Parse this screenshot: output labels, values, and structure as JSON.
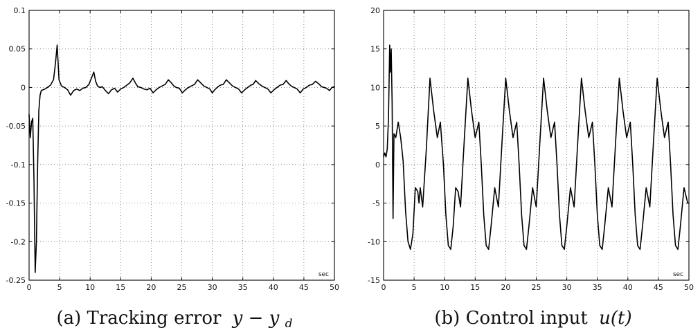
{
  "chart_data": [
    {
      "type": "line",
      "caption_label": "(a) Tracking error",
      "caption_math": "y − y",
      "caption_sub": "d",
      "unit_label": "sec",
      "xlim": [
        0,
        50
      ],
      "ylim": [
        -0.25,
        0.1
      ],
      "xticks": [
        0,
        5,
        10,
        15,
        20,
        25,
        30,
        35,
        40,
        45,
        50
      ],
      "yticks": [
        -0.25,
        -0.2,
        -0.15,
        -0.1,
        -0.05,
        0,
        0.05,
        0.1
      ],
      "xtick_labels": [
        "0",
        "5",
        "10",
        "15",
        "20",
        "25",
        "30",
        "35",
        "40",
        "45",
        "50"
      ],
      "ytick_labels": [
        "-0.25",
        "-0.2",
        "-0.15",
        "-0.1",
        "-0.05",
        "0",
        "0.05",
        "0.1"
      ],
      "grid": true,
      "line_color": "#000000",
      "series": [
        {
          "x": [
            0,
            0.2,
            0.4,
            0.6,
            0.8,
            1.0,
            1.2,
            1.4,
            1.6,
            1.8,
            2.0,
            2.3,
            2.6,
            3.0,
            3.5,
            4.0,
            4.3,
            4.6,
            4.9,
            5.3,
            5.8,
            6.3,
            6.8,
            7.3,
            7.8,
            8.3,
            8.8,
            9.3,
            9.8,
            10.2,
            10.6,
            10.9,
            11.2,
            11.6,
            12.0,
            12.5,
            13.0,
            13.5,
            14.0,
            14.5,
            15.0,
            15.5,
            16.0,
            16.5,
            17.0,
            17.4,
            17.8,
            18.3,
            18.8,
            19.3,
            19.8,
            20.3,
            20.8,
            21.3,
            21.8,
            22.3,
            22.8,
            23.3,
            23.7,
            24.1,
            24.6,
            25.1,
            25.6,
            26.1,
            26.6,
            27.1,
            27.6,
            28.1,
            28.6,
            29.1,
            29.6,
            30.0,
            30.4,
            30.8,
            31.3,
            31.8,
            32.3,
            32.8,
            33.3,
            33.8,
            34.3,
            34.8,
            35.3,
            35.8,
            36.3,
            36.7,
            37.1,
            37.6,
            38.1,
            38.6,
            39.1,
            39.6,
            40.1,
            40.6,
            41.1,
            41.6,
            42.1,
            42.5,
            42.9,
            43.4,
            43.9,
            44.4,
            44.9,
            45.4,
            45.9,
            46.4,
            46.9,
            47.4,
            47.9,
            48.3,
            48.7,
            49.2,
            49.6,
            50.0
          ],
          "y": [
            -0.035,
            -0.065,
            -0.045,
            -0.04,
            -0.12,
            -0.24,
            -0.2,
            -0.1,
            -0.03,
            -0.01,
            -0.004,
            -0.003,
            -0.002,
            0.0,
            0.003,
            0.01,
            0.03,
            0.055,
            0.01,
            0.002,
            0.0,
            -0.003,
            -0.01,
            -0.004,
            -0.002,
            -0.004,
            -0.001,
            0.0,
            0.004,
            0.012,
            0.02,
            0.008,
            0.002,
            0.0,
            0.001,
            -0.004,
            -0.008,
            -0.003,
            -0.001,
            -0.006,
            -0.002,
            0.0,
            0.003,
            0.006,
            0.012,
            0.006,
            0.001,
            0.0,
            -0.002,
            -0.003,
            -0.001,
            -0.007,
            -0.003,
            0.0,
            0.002,
            0.004,
            0.01,
            0.006,
            0.002,
            0.0,
            -0.001,
            -0.007,
            -0.003,
            0.0,
            0.002,
            0.004,
            0.01,
            0.006,
            0.002,
            0.0,
            -0.002,
            -0.007,
            -0.003,
            0.0,
            0.003,
            0.004,
            0.01,
            0.006,
            0.002,
            0.0,
            -0.002,
            -0.007,
            -0.003,
            0.0,
            0.003,
            0.004,
            0.009,
            0.005,
            0.002,
            0.0,
            -0.002,
            -0.007,
            -0.003,
            0.0,
            0.003,
            0.004,
            0.009,
            0.005,
            0.002,
            0.0,
            -0.002,
            -0.007,
            -0.002,
            0.0,
            0.003,
            0.004,
            0.008,
            0.005,
            0.001,
            0.0,
            -0.001,
            -0.004,
            0.0,
            0.001
          ]
        }
      ]
    },
    {
      "type": "line",
      "caption_label": "(b) Control input",
      "caption_math": "u(t)",
      "caption_sub": "",
      "unit_label": "sec",
      "xlim": [
        0,
        50
      ],
      "ylim": [
        -15,
        20
      ],
      "xticks": [
        0,
        5,
        10,
        15,
        20,
        25,
        30,
        35,
        40,
        45,
        50
      ],
      "yticks": [
        -15,
        -10,
        -5,
        0,
        5,
        10,
        15,
        20
      ],
      "xtick_labels": [
        "0",
        "5",
        "10",
        "15",
        "20",
        "25",
        "30",
        "35",
        "40",
        "45",
        "50"
      ],
      "ytick_labels": [
        "-15",
        "-10",
        "-5",
        "0",
        "5",
        "10",
        "15",
        "20"
      ],
      "grid": true,
      "line_color": "#000000",
      "series": [
        {
          "x": [
            0,
            0.2,
            0.4,
            0.6,
            0.8,
            1.0,
            1.1,
            1.25,
            1.4,
            1.55,
            1.7,
            2.0,
            2.4,
            2.8,
            3.2,
            3.6,
            4.0,
            4.4,
            4.8,
            5.2,
            5.6,
            5.8,
            6.0,
            6.4,
            7.0,
            7.6,
            8.2,
            8.8,
            9.3,
            9.8,
            10.2,
            10.6,
            11.0,
            11.4,
            11.8,
            12.2,
            12.6,
            13.2,
            13.8,
            14.4,
            15.0,
            15.6,
            16.0,
            16.4,
            16.8,
            17.2,
            17.6,
            18.2,
            18.8,
            19.4,
            20.0,
            20.6,
            21.2,
            21.8,
            22.2,
            22.6,
            23.0,
            23.4,
            23.8,
            24.4,
            25.0,
            25.6,
            26.2,
            26.8,
            27.4,
            28.0,
            28.4,
            28.8,
            29.2,
            29.6,
            30.0,
            30.6,
            31.2,
            31.8,
            32.4,
            33.0,
            33.6,
            34.2,
            34.6,
            35.0,
            35.4,
            35.8,
            36.2,
            36.8,
            37.4,
            38.0,
            38.6,
            39.2,
            39.8,
            40.4,
            40.8,
            41.2,
            41.6,
            42.0,
            42.4,
            43.0,
            43.6,
            44.2,
            44.8,
            45.4,
            46.0,
            46.6,
            47.0,
            47.4,
            47.8,
            48.2,
            48.6,
            49.2,
            49.8,
            50.0
          ],
          "y": [
            1,
            1.5,
            1.0,
            2.0,
            6.0,
            15.5,
            12.0,
            15.0,
            8.0,
            -7.0,
            4.0,
            3.5,
            5.5,
            3.5,
            0.5,
            -6.0,
            -10.0,
            -11.0,
            -9.0,
            -3.0,
            -3.5,
            -5.0,
            -3.0,
            -5.5,
            2.0,
            11.2,
            7.0,
            3.5,
            5.5,
            0.0,
            -6.5,
            -10.5,
            -11.0,
            -8.0,
            -3.0,
            -3.5,
            -5.5,
            3.0,
            11.2,
            7.0,
            3.5,
            5.5,
            0.0,
            -6.5,
            -10.5,
            -11.0,
            -8.0,
            -3.0,
            -5.5,
            3.0,
            11.2,
            7.0,
            3.5,
            5.5,
            0.0,
            -6.5,
            -10.5,
            -11.0,
            -8.0,
            -3.0,
            -5.5,
            3.0,
            11.2,
            7.0,
            3.5,
            5.5,
            0.0,
            -6.5,
            -10.5,
            -11.0,
            -8.0,
            -3.0,
            -5.5,
            3.0,
            11.2,
            7.0,
            3.5,
            5.5,
            0.0,
            -6.5,
            -10.5,
            -11.0,
            -8.0,
            -3.0,
            -5.5,
            3.0,
            11.2,
            7.0,
            3.5,
            5.5,
            0.0,
            -6.5,
            -10.5,
            -11.0,
            -8.0,
            -3.0,
            -5.5,
            3.0,
            11.2,
            7.0,
            3.5,
            5.5,
            0.0,
            -6.5,
            -10.5,
            -11.0,
            -8.0,
            -3.0,
            -5.0,
            -5.0
          ]
        }
      ]
    }
  ]
}
